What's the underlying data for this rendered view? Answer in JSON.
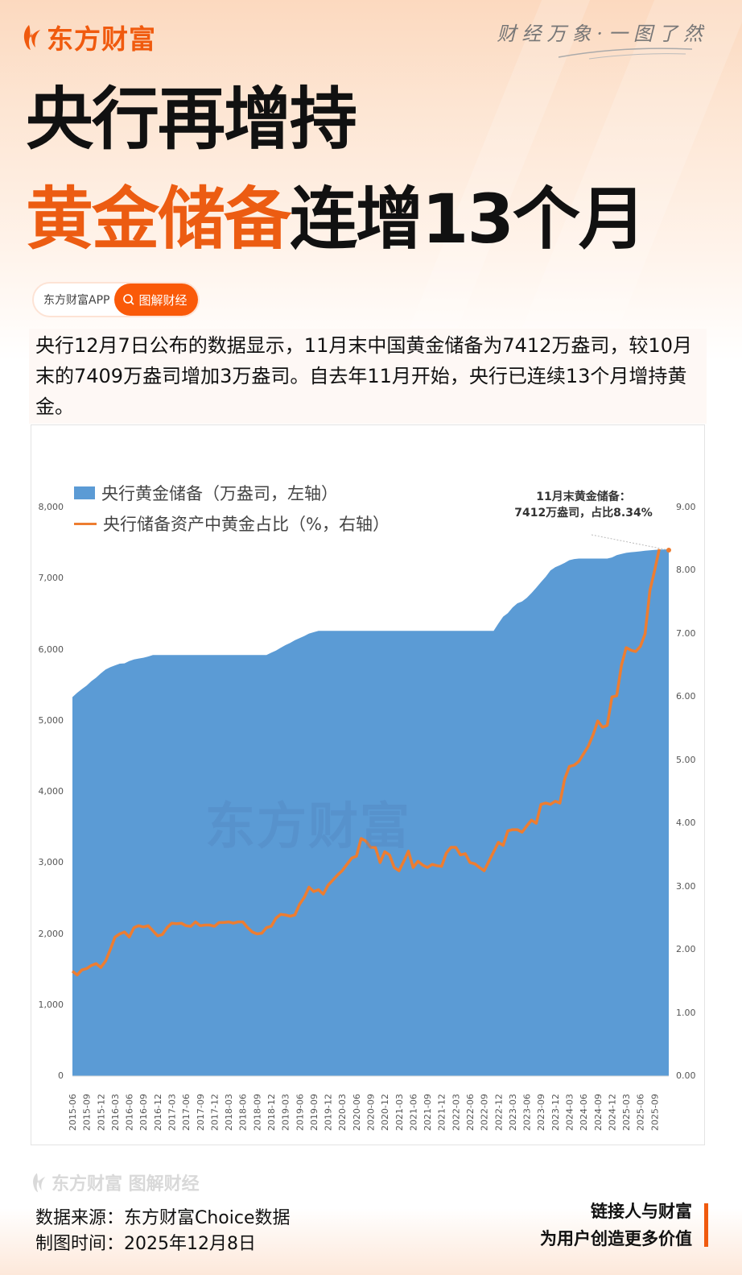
{
  "header": {
    "brand": "东方财富",
    "slogan": "财经万象·一图了然"
  },
  "title": {
    "line1": "央行再增持",
    "line2_highlight": "黄金储备",
    "line2_rest": "连增13个月"
  },
  "app_pill": {
    "app_name": "东方财富APP",
    "button_label": "图解财经",
    "button_icon": "search-icon"
  },
  "description": "央行12月7日公布的数据显示，11月末中国黄金储备为7412万盎司，较10月末的7409万盎司增加3万盎司。自去年11月开始，央行已连续13个月增持黄金。",
  "colors": {
    "accent": "#f05a0e",
    "area": "#5b9bd5",
    "line": "#ed7d31"
  },
  "chart_data": {
    "type": "area+line",
    "title": "",
    "annotation": [
      "11月末黄金储备：",
      "7412万盎司，占比8.34%"
    ],
    "legend": [
      "央行黄金储备（万盎司，左轴）",
      "央行储备资产中黄金占比（%，右轴）"
    ],
    "legend_position": "top-left",
    "watermark": "东方财富",
    "left_axis": {
      "ticks": [
        "0",
        "1,000",
        "2,000",
        "3,000",
        "4,000",
        "5,000",
        "6,000",
        "7,000",
        "8,000"
      ],
      "range": [
        0,
        8000
      ]
    },
    "right_axis": {
      "ticks": [
        "0.00",
        "1.00",
        "2.00",
        "3.00",
        "4.00",
        "5.00",
        "6.00",
        "7.00",
        "8.00",
        "9.00"
      ],
      "range": [
        0,
        9
      ]
    },
    "x_tick_labels": [
      "2015-06",
      "2015-09",
      "2015-12",
      "2016-03",
      "2016-06",
      "2016-09",
      "2016-12",
      "2017-03",
      "2017-06",
      "2017-09",
      "2017-12",
      "2018-03",
      "2018-06",
      "2018-09",
      "2018-12",
      "2019-03",
      "2019-06",
      "2019-09",
      "2019-12",
      "2020-03",
      "2020-06",
      "2020-09",
      "2020-12",
      "2021-03",
      "2021-06",
      "2021-09",
      "2021-12",
      "2022-03",
      "2022-06",
      "2022-09",
      "2022-12",
      "2023-03",
      "2023-06",
      "2023-09",
      "2023-12",
      "2024-03",
      "2024-06",
      "2024-09",
      "2024-12",
      "2025-03",
      "2025-06",
      "2025-09"
    ],
    "x_start": "2015-06",
    "x_end": "2025-11",
    "series": [
      {
        "name": "央行黄金储备（万盎司，左轴）",
        "type": "area",
        "axis": "left",
        "values": [
          5332,
          5393,
          5445,
          5493,
          5555,
          5605,
          5666,
          5719,
          5752,
          5778,
          5802,
          5806,
          5838,
          5862,
          5874,
          5886,
          5903,
          5924,
          5924,
          5924,
          5924,
          5924,
          5924,
          5924,
          5924,
          5924,
          5924,
          5924,
          5924,
          5924,
          5924,
          5924,
          5924,
          5924,
          5924,
          5924,
          5924,
          5924,
          5924,
          5924,
          5924,
          5924,
          5956,
          5986,
          6026,
          6062,
          6094,
          6131,
          6161,
          6191,
          6226,
          6245,
          6264,
          6264,
          6264,
          6264,
          6264,
          6264,
          6264,
          6264,
          6264,
          6264,
          6264,
          6264,
          6264,
          6264,
          6264,
          6264,
          6264,
          6264,
          6264,
          6264,
          6264,
          6264,
          6264,
          6264,
          6264,
          6264,
          6264,
          6264,
          6264,
          6264,
          6264,
          6264,
          6264,
          6264,
          6264,
          6264,
          6264,
          6264,
          6367,
          6464,
          6512,
          6592,
          6650,
          6676,
          6727,
          6795,
          6869,
          6948,
          7024,
          7113,
          7158,
          7187,
          7219,
          7258,
          7274,
          7280,
          7280,
          7280,
          7280,
          7280,
          7280,
          7280,
          7296,
          7329,
          7345,
          7361,
          7370,
          7376,
          7383,
          7390,
          7396,
          7402,
          7406,
          7409,
          7412
        ]
      },
      {
        "name": "央行储备资产中黄金占比（%，右轴）",
        "type": "line",
        "axis": "right",
        "values": [
          1.66,
          1.6,
          1.68,
          1.7,
          1.75,
          1.78,
          1.72,
          1.82,
          2.0,
          2.2,
          2.25,
          2.28,
          2.2,
          2.35,
          2.38,
          2.36,
          2.38,
          2.3,
          2.22,
          2.24,
          2.35,
          2.42,
          2.41,
          2.42,
          2.38,
          2.37,
          2.44,
          2.38,
          2.39,
          2.39,
          2.37,
          2.43,
          2.43,
          2.44,
          2.42,
          2.44,
          2.44,
          2.35,
          2.28,
          2.25,
          2.26,
          2.35,
          2.37,
          2.5,
          2.56,
          2.55,
          2.53,
          2.55,
          2.72,
          2.83,
          2.99,
          2.92,
          2.95,
          2.88,
          3.02,
          3.1,
          3.18,
          3.25,
          3.35,
          3.45,
          3.48,
          3.76,
          3.72,
          3.62,
          3.62,
          3.38,
          3.55,
          3.5,
          3.3,
          3.25,
          3.4,
          3.56,
          3.3,
          3.4,
          3.34,
          3.3,
          3.35,
          3.33,
          3.32,
          3.53,
          3.62,
          3.62,
          3.5,
          3.52,
          3.38,
          3.36,
          3.3,
          3.25,
          3.4,
          3.55,
          3.7,
          3.65,
          3.88,
          3.9,
          3.9,
          3.86,
          3.96,
          4.05,
          4.0,
          4.3,
          4.32,
          4.3,
          4.35,
          4.32,
          4.7,
          4.9,
          4.92,
          4.98,
          5.1,
          5.22,
          5.4,
          5.62,
          5.52,
          5.55,
          6.0,
          6.02,
          6.5,
          6.78,
          6.74,
          6.72,
          6.8,
          7.0,
          7.68,
          8.0,
          8.34
        ]
      }
    ]
  },
  "footer": {
    "logo_text": "东方财富 图解财经",
    "source_label": "数据来源：东方财富Choice数据",
    "date_label": "制图时间：2025年12月8日",
    "slogan_line1": "链接人与财富",
    "slogan_line2": "为用户创造更多价值"
  }
}
